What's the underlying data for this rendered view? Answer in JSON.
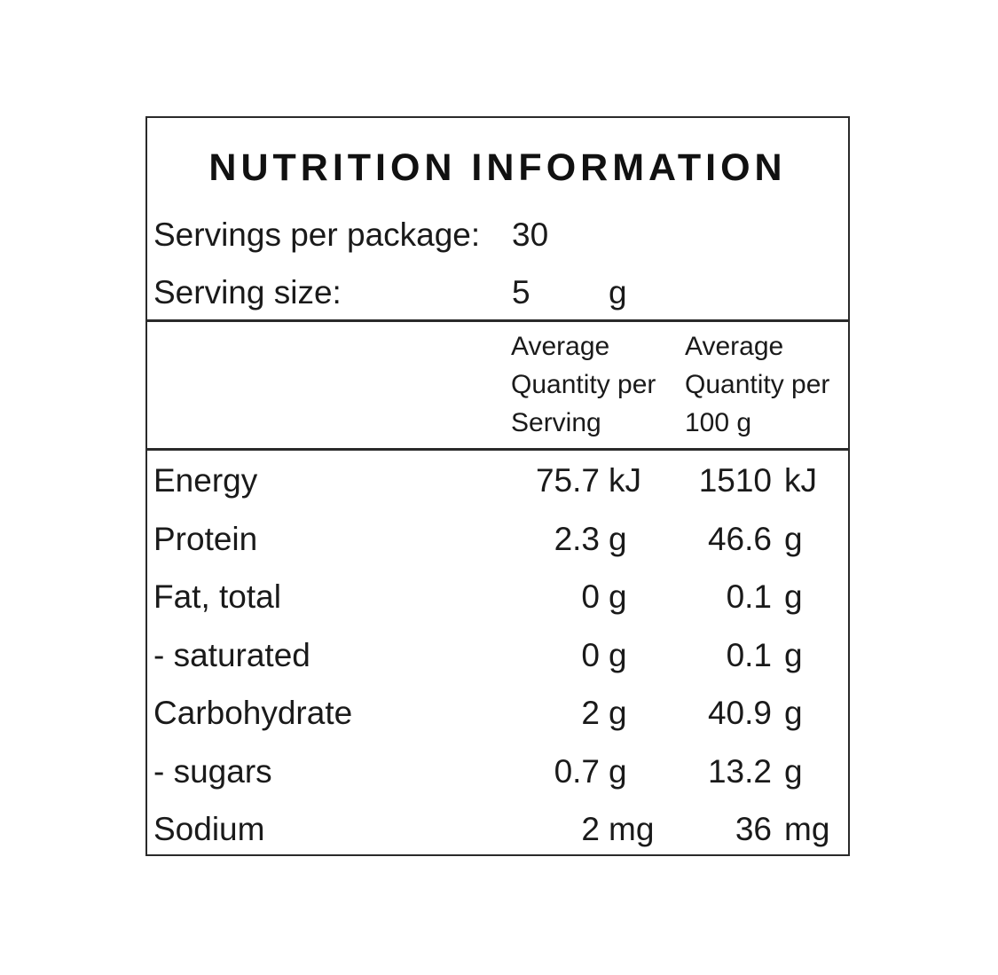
{
  "panel": {
    "title": "NUTRITION INFORMATION",
    "servings_per_package": {
      "label": "Servings per package:",
      "value": "30"
    },
    "serving_size": {
      "label": "Serving size:",
      "value": "5",
      "unit": "g"
    },
    "column_headers": {
      "per_serving": [
        "Average",
        "Quantity per",
        "Serving"
      ],
      "per_100g": [
        "Average",
        "Quantity per",
        "100 g"
      ]
    },
    "rows": [
      {
        "name": "Energy",
        "per_serving": "75.7",
        "per_serving_unit": "kJ",
        "per_100g": "1510",
        "per_100g_unit": "kJ"
      },
      {
        "name": "Protein",
        "per_serving": "2.3",
        "per_serving_unit": "g",
        "per_100g": "46.6",
        "per_100g_unit": "g"
      },
      {
        "name": "Fat, total",
        "per_serving": "0",
        "per_serving_unit": "g",
        "per_100g": "0.1",
        "per_100g_unit": "g"
      },
      {
        "name": "- saturated",
        "per_serving": "0",
        "per_serving_unit": "g",
        "per_100g": "0.1",
        "per_100g_unit": "g"
      },
      {
        "name": "Carbohydrate",
        "per_serving": "2",
        "per_serving_unit": "g",
        "per_100g": "40.9",
        "per_100g_unit": "g"
      },
      {
        "name": "- sugars",
        "per_serving": "0.7",
        "per_serving_unit": "g",
        "per_100g": "13.2",
        "per_100g_unit": "g"
      },
      {
        "name": "Sodium",
        "per_serving": "2",
        "per_serving_unit": "mg",
        "per_100g": "36",
        "per_100g_unit": "mg"
      }
    ]
  }
}
